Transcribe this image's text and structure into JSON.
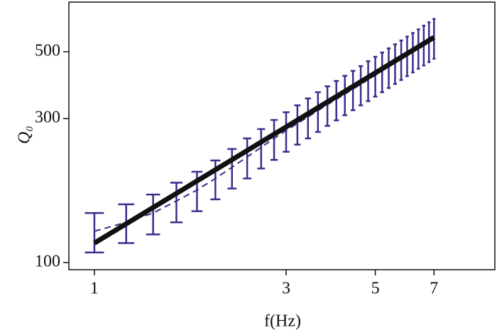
{
  "chart_data": {
    "type": "errorbar",
    "xlabel": "f(Hz)",
    "ylabel": "Q₀",
    "x": [
      1,
      1.2,
      1.4,
      1.6,
      1.8,
      2.0,
      2.2,
      2.4,
      2.6,
      2.8,
      3.0,
      3.2,
      3.4,
      3.6,
      3.8,
      4.0,
      4.2,
      4.4,
      4.6,
      4.8,
      5.0,
      5.2,
      5.4,
      5.6,
      5.8,
      6.0,
      6.2,
      6.4,
      6.6,
      6.8,
      7.0
    ],
    "values": [
      127,
      136,
      146,
      160,
      174,
      190,
      207,
      224,
      241,
      258,
      274,
      289,
      304,
      319,
      334,
      348,
      362,
      376,
      390,
      404,
      418,
      432,
      446,
      460,
      474,
      488,
      502,
      516,
      530,
      544,
      558
    ],
    "errors": [
      19,
      20,
      22,
      24,
      26,
      28,
      31,
      34,
      36,
      39,
      41,
      43,
      46,
      48,
      50,
      52,
      54,
      56,
      58,
      61,
      63,
      65,
      67,
      69,
      71,
      73,
      75,
      77,
      80,
      82,
      84
    ],
    "color": "#3f2b8c",
    "fit": {
      "x": [
        1,
        7
      ],
      "values": [
        116,
        558
      ],
      "color": "#111111"
    },
    "xscale": "log",
    "yscale": "log",
    "xlim": [
      0.864,
      9.92
    ],
    "ylim": [
      94.7,
      730
    ],
    "xticks": [
      1,
      3,
      5,
      7
    ],
    "yticks": [
      100,
      300,
      500
    ]
  }
}
